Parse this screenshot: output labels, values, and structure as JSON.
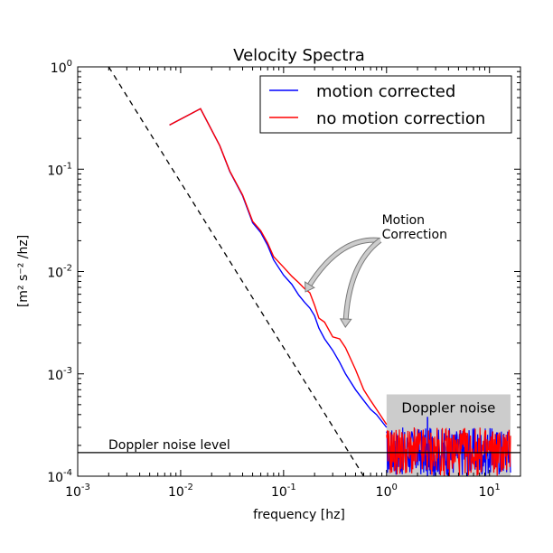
{
  "chart_data": {
    "type": "line",
    "title": "Velocity Spectra",
    "xlabel": "frequency [hz]",
    "ylabel": "[m² s⁻² /hz]",
    "xscale": "log",
    "yscale": "log",
    "xlim": [
      0.001,
      20
    ],
    "ylim": [
      0.0001,
      1
    ],
    "x_ticks": [
      {
        "value": 0.001,
        "base": "10",
        "exp": "-3"
      },
      {
        "value": 0.01,
        "base": "10",
        "exp": "-2"
      },
      {
        "value": 0.1,
        "base": "10",
        "exp": "-1"
      },
      {
        "value": 1,
        "base": "10",
        "exp": "0"
      },
      {
        "value": 10,
        "base": "10",
        "exp": "1"
      }
    ],
    "y_ticks": [
      {
        "value": 0.0001,
        "base": "10",
        "exp": "-4"
      },
      {
        "value": 0.001,
        "base": "10",
        "exp": "-3"
      },
      {
        "value": 0.01,
        "base": "10",
        "exp": "-2"
      },
      {
        "value": 0.1,
        "base": "10",
        "exp": "-1"
      },
      {
        "value": 1,
        "base": "10",
        "exp": "0"
      }
    ],
    "grid": false,
    "legend_placement": "top-right",
    "series": [
      {
        "name": "motion corrected",
        "color": "#0000ff",
        "x": [
          0.0078,
          0.0156,
          0.024,
          0.03,
          0.04,
          0.05,
          0.06,
          0.07,
          0.08,
          0.1,
          0.12,
          0.14,
          0.16,
          0.18,
          0.2,
          0.22,
          0.25,
          0.3,
          0.35,
          0.4,
          0.5,
          0.6,
          0.7,
          0.8,
          1.0
        ],
        "y": [
          0.27,
          0.39,
          0.17,
          0.095,
          0.055,
          0.03,
          0.024,
          0.018,
          0.013,
          0.0092,
          0.0075,
          0.0059,
          0.005,
          0.0044,
          0.0037,
          0.0028,
          0.0022,
          0.0017,
          0.0013,
          0.001,
          0.0007,
          0.00055,
          0.00045,
          0.0004,
          0.0003
        ]
      },
      {
        "name": "no motion correction",
        "color": "#ff0000",
        "x": [
          0.0078,
          0.0156,
          0.024,
          0.03,
          0.04,
          0.05,
          0.06,
          0.07,
          0.08,
          0.1,
          0.12,
          0.14,
          0.16,
          0.18,
          0.2,
          0.22,
          0.25,
          0.3,
          0.35,
          0.4,
          0.5,
          0.6,
          0.7,
          0.8,
          1.0
        ],
        "y": [
          0.27,
          0.39,
          0.17,
          0.096,
          0.056,
          0.031,
          0.025,
          0.019,
          0.014,
          0.011,
          0.009,
          0.0078,
          0.0068,
          0.0062,
          0.0047,
          0.0035,
          0.0032,
          0.0023,
          0.0022,
          0.0018,
          0.0011,
          0.0007,
          0.00055,
          0.00045,
          0.00032
        ]
      }
    ],
    "noise_band": {
      "xmin": 1,
      "xmax": 16,
      "ymin": 0.0001,
      "ymax": 0.0003,
      "blue_peak": {
        "x": 2.5,
        "y": 0.00038
      }
    },
    "reference_lines": [
      {
        "type": "dashed",
        "description": "slope",
        "x": [
          0.002,
          0.6
        ],
        "y": [
          1.0,
          0.0001
        ]
      },
      {
        "type": "horizontal",
        "y": 0.00017,
        "label": "Doppler noise level"
      }
    ],
    "shaded_region": {
      "xmin": 1.0,
      "xmax": 16,
      "ymin": 0.0001,
      "ymax": 0.00063,
      "label": "Doppler noise",
      "color": "#cccccc"
    },
    "annotations": [
      {
        "text_lines": [
          "Motion",
          "Correction"
        ],
        "text_x": 0.9,
        "text_y": 0.021,
        "targets": [
          {
            "x": 0.17,
            "y": 0.0068
          },
          {
            "x": 0.4,
            "y": 0.0031
          }
        ]
      }
    ]
  }
}
